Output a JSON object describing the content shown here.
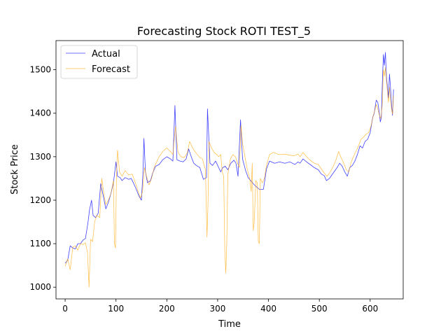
{
  "chart_data": {
    "type": "line",
    "title": "Forecasting Stock ROTI TEST_5",
    "xlabel": "Time",
    "ylabel": "Stock Price",
    "xlim": [
      -18,
      665
    ],
    "ylim": [
      973,
      1567
    ],
    "xticks": [
      0,
      100,
      200,
      300,
      400,
      500,
      600
    ],
    "yticks": [
      1000,
      1100,
      1200,
      1300,
      1400,
      1500
    ],
    "grid": false,
    "legend": "top-left",
    "series": [
      {
        "name": "Actual",
        "color": "#0000ff",
        "points": [
          [
            0,
            1055
          ],
          [
            5,
            1062
          ],
          [
            10,
            1095
          ],
          [
            15,
            1090
          ],
          [
            20,
            1088
          ],
          [
            25,
            1100
          ],
          [
            30,
            1100
          ],
          [
            35,
            1108
          ],
          [
            40,
            1112
          ],
          [
            45,
            1150
          ],
          [
            48,
            1178
          ],
          [
            52,
            1200
          ],
          [
            55,
            1165
          ],
          [
            60,
            1160
          ],
          [
            65,
            1170
          ],
          [
            70,
            1238
          ],
          [
            75,
            1210
          ],
          [
            80,
            1180
          ],
          [
            85,
            1195
          ],
          [
            90,
            1215
          ],
          [
            95,
            1240
          ],
          [
            100,
            1288
          ],
          [
            103,
            1255
          ],
          [
            108,
            1252
          ],
          [
            112,
            1245
          ],
          [
            118,
            1252
          ],
          [
            125,
            1248
          ],
          [
            130,
            1250
          ],
          [
            135,
            1238
          ],
          [
            140,
            1225
          ],
          [
            145,
            1210
          ],
          [
            150,
            1200
          ],
          [
            153,
            1262
          ],
          [
            155,
            1342
          ],
          [
            158,
            1265
          ],
          [
            162,
            1240
          ],
          [
            168,
            1245
          ],
          [
            172,
            1262
          ],
          [
            178,
            1278
          ],
          [
            185,
            1282
          ],
          [
            192,
            1293
          ],
          [
            200,
            1300
          ],
          [
            207,
            1295
          ],
          [
            212,
            1290
          ],
          [
            216,
            1418
          ],
          [
            220,
            1293
          ],
          [
            226,
            1290
          ],
          [
            232,
            1288
          ],
          [
            238,
            1295
          ],
          [
            243,
            1318
          ],
          [
            248,
            1300
          ],
          [
            253,
            1285
          ],
          [
            258,
            1280
          ],
          [
            265,
            1275
          ],
          [
            272,
            1248
          ],
          [
            278,
            1252
          ],
          [
            280,
            1410
          ],
          [
            285,
            1285
          ],
          [
            290,
            1280
          ],
          [
            296,
            1290
          ],
          [
            302,
            1275
          ],
          [
            306,
            1265
          ],
          [
            310,
            1275
          ],
          [
            315,
            1278
          ],
          [
            320,
            1270
          ],
          [
            326,
            1285
          ],
          [
            332,
            1292
          ],
          [
            336,
            1285
          ],
          [
            340,
            1255
          ],
          [
            345,
            1385
          ],
          [
            349,
            1295
          ],
          [
            355,
            1268
          ],
          [
            360,
            1252
          ],
          [
            365,
            1245
          ],
          [
            370,
            1238
          ],
          [
            375,
            1232
          ],
          [
            382,
            1225
          ],
          [
            390,
            1225
          ],
          [
            396,
            1272
          ],
          [
            402,
            1290
          ],
          [
            412,
            1285
          ],
          [
            422,
            1288
          ],
          [
            432,
            1285
          ],
          [
            442,
            1288
          ],
          [
            452,
            1282
          ],
          [
            458,
            1288
          ],
          [
            462,
            1285
          ],
          [
            468,
            1295
          ],
          [
            475,
            1288
          ],
          [
            482,
            1282
          ],
          [
            490,
            1275
          ],
          [
            498,
            1270
          ],
          [
            504,
            1260
          ],
          [
            510,
            1256
          ],
          [
            514,
            1245
          ],
          [
            520,
            1250
          ],
          [
            527,
            1262
          ],
          [
            535,
            1275
          ],
          [
            540,
            1285
          ],
          [
            545,
            1278
          ],
          [
            550,
            1265
          ],
          [
            555,
            1255
          ],
          [
            560,
            1275
          ],
          [
            565,
            1280
          ],
          [
            570,
            1290
          ],
          [
            575,
            1305
          ],
          [
            580,
            1325
          ],
          [
            585,
            1320
          ],
          [
            590,
            1335
          ],
          [
            595,
            1340
          ],
          [
            600,
            1355
          ],
          [
            605,
            1390
          ],
          [
            608,
            1400
          ],
          [
            612,
            1430
          ],
          [
            615,
            1425
          ],
          [
            618,
            1400
          ],
          [
            620,
            1380
          ],
          [
            622,
            1390
          ],
          [
            624,
            1470
          ],
          [
            626,
            1535
          ],
          [
            628,
            1510
          ],
          [
            630,
            1540
          ],
          [
            632,
            1485
          ],
          [
            634,
            1460
          ],
          [
            636,
            1435
          ],
          [
            638,
            1490
          ],
          [
            640,
            1460
          ],
          [
            642,
            1420
          ],
          [
            644,
            1395
          ],
          [
            646,
            1455
          ]
        ]
      },
      {
        "name": "Forecast",
        "color": "#ffa500",
        "points": [
          [
            0,
            1048
          ],
          [
            5,
            1065
          ],
          [
            10,
            1040
          ],
          [
            15,
            1092
          ],
          [
            20,
            1095
          ],
          [
            25,
            1085
          ],
          [
            30,
            1100
          ],
          [
            35,
            1098
          ],
          [
            40,
            1102
          ],
          [
            44,
            1080
          ],
          [
            47,
            1000
          ],
          [
            50,
            1110
          ],
          [
            54,
            1105
          ],
          [
            58,
            1150
          ],
          [
            62,
            1165
          ],
          [
            68,
            1160
          ],
          [
            72,
            1250
          ],
          [
            76,
            1215
          ],
          [
            80,
            1190
          ],
          [
            85,
            1200
          ],
          [
            90,
            1215
          ],
          [
            95,
            1245
          ],
          [
            97,
            1100
          ],
          [
            99,
            1090
          ],
          [
            101,
            1255
          ],
          [
            103,
            1315
          ],
          [
            107,
            1265
          ],
          [
            112,
            1255
          ],
          [
            118,
            1268
          ],
          [
            125,
            1258
          ],
          [
            132,
            1260
          ],
          [
            138,
            1240
          ],
          [
            143,
            1222
          ],
          [
            148,
            1205
          ],
          [
            152,
            1218
          ],
          [
            156,
            1275
          ],
          [
            160,
            1255
          ],
          [
            165,
            1235
          ],
          [
            170,
            1250
          ],
          [
            175,
            1275
          ],
          [
            180,
            1288
          ],
          [
            185,
            1300
          ],
          [
            192,
            1312
          ],
          [
            200,
            1320
          ],
          [
            207,
            1312
          ],
          [
            212,
            1305
          ],
          [
            217,
            1370
          ],
          [
            222,
            1310
          ],
          [
            228,
            1300
          ],
          [
            234,
            1298
          ],
          [
            240,
            1308
          ],
          [
            245,
            1335
          ],
          [
            250,
            1322
          ],
          [
            255,
            1312
          ],
          [
            260,
            1305
          ],
          [
            265,
            1298
          ],
          [
            270,
            1295
          ],
          [
            276,
            1270
          ],
          [
            279,
            1115
          ],
          [
            281,
            1190
          ],
          [
            283,
            1335
          ],
          [
            288,
            1320
          ],
          [
            293,
            1310
          ],
          [
            298,
            1305
          ],
          [
            302,
            1300
          ],
          [
            306,
            1305
          ],
          [
            309,
            1265
          ],
          [
            312,
            1255
          ],
          [
            314,
            1085
          ],
          [
            316,
            1032
          ],
          [
            318,
            1105
          ],
          [
            320,
            1260
          ],
          [
            325,
            1295
          ],
          [
            330,
            1305
          ],
          [
            335,
            1300
          ],
          [
            339,
            1285
          ],
          [
            343,
            1275
          ],
          [
            346,
            1372
          ],
          [
            349,
            1330
          ],
          [
            353,
            1305
          ],
          [
            358,
            1272
          ],
          [
            363,
            1250
          ],
          [
            366,
            1220
          ],
          [
            368,
            1285
          ],
          [
            370,
            1130
          ],
          [
            372,
            1150
          ],
          [
            375,
            1245
          ],
          [
            378,
            1240
          ],
          [
            380,
            1105
          ],
          [
            382,
            1100
          ],
          [
            384,
            1250
          ],
          [
            388,
            1240
          ],
          [
            392,
            1250
          ],
          [
            396,
            1280
          ],
          [
            402,
            1305
          ],
          [
            410,
            1310
          ],
          [
            420,
            1305
          ],
          [
            430,
            1306
          ],
          [
            440,
            1304
          ],
          [
            450,
            1302
          ],
          [
            458,
            1306
          ],
          [
            462,
            1300
          ],
          [
            468,
            1310
          ],
          [
            475,
            1300
          ],
          [
            482,
            1292
          ],
          [
            490,
            1285
          ],
          [
            498,
            1282
          ],
          [
            505,
            1270
          ],
          [
            510,
            1262
          ],
          [
            515,
            1255
          ],
          [
            520,
            1262
          ],
          [
            526,
            1275
          ],
          [
            532,
            1290
          ],
          [
            538,
            1312
          ],
          [
            542,
            1300
          ],
          [
            548,
            1285
          ],
          [
            553,
            1270
          ],
          [
            558,
            1265
          ],
          [
            562,
            1285
          ],
          [
            567,
            1300
          ],
          [
            572,
            1312
          ],
          [
            577,
            1325
          ],
          [
            582,
            1340
          ],
          [
            587,
            1345
          ],
          [
            592,
            1352
          ],
          [
            597,
            1355
          ],
          [
            602,
            1372
          ],
          [
            606,
            1395
          ],
          [
            609,
            1405
          ],
          [
            612,
            1420
          ],
          [
            615,
            1410
          ],
          [
            618,
            1395
          ],
          [
            621,
            1388
          ],
          [
            624,
            1420
          ],
          [
            626,
            1500
          ],
          [
            628,
            1485
          ],
          [
            630,
            1505
          ],
          [
            632,
            1475
          ],
          [
            634,
            1450
          ],
          [
            636,
            1425
          ],
          [
            638,
            1460
          ],
          [
            640,
            1430
          ],
          [
            642,
            1410
          ],
          [
            644,
            1398
          ],
          [
            646,
            1440
          ]
        ]
      }
    ]
  }
}
